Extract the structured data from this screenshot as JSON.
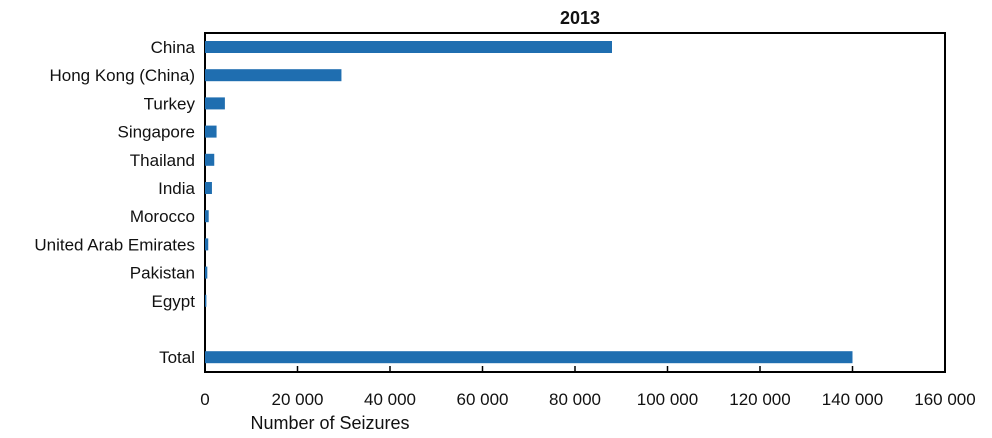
{
  "chart_data": {
    "type": "bar",
    "orientation": "horizontal",
    "title": "2013",
    "xlabel": "Number of Seizures",
    "ylabel": "",
    "xlim": [
      0,
      160000
    ],
    "x_ticks": [
      0,
      20000,
      40000,
      60000,
      80000,
      100000,
      120000,
      140000,
      160000
    ],
    "x_tick_labels": [
      "0",
      "20 000",
      "40 000",
      "60 000",
      "80 000",
      "100 000",
      "120 000",
      "140 000",
      "160 000"
    ],
    "categories": [
      "China",
      "Hong Kong (China)",
      "Turkey",
      "Singapore",
      "Thailand",
      "India",
      "Morocco",
      "United Arab Emirates",
      "Pakistan",
      "Egypt",
      "",
      "Total"
    ],
    "values": [
      88000,
      29500,
      4300,
      2500,
      2000,
      1500,
      800,
      700,
      500,
      300,
      null,
      140000
    ],
    "bar_color": "#1f6eb0",
    "grid": false,
    "legend": "none"
  }
}
